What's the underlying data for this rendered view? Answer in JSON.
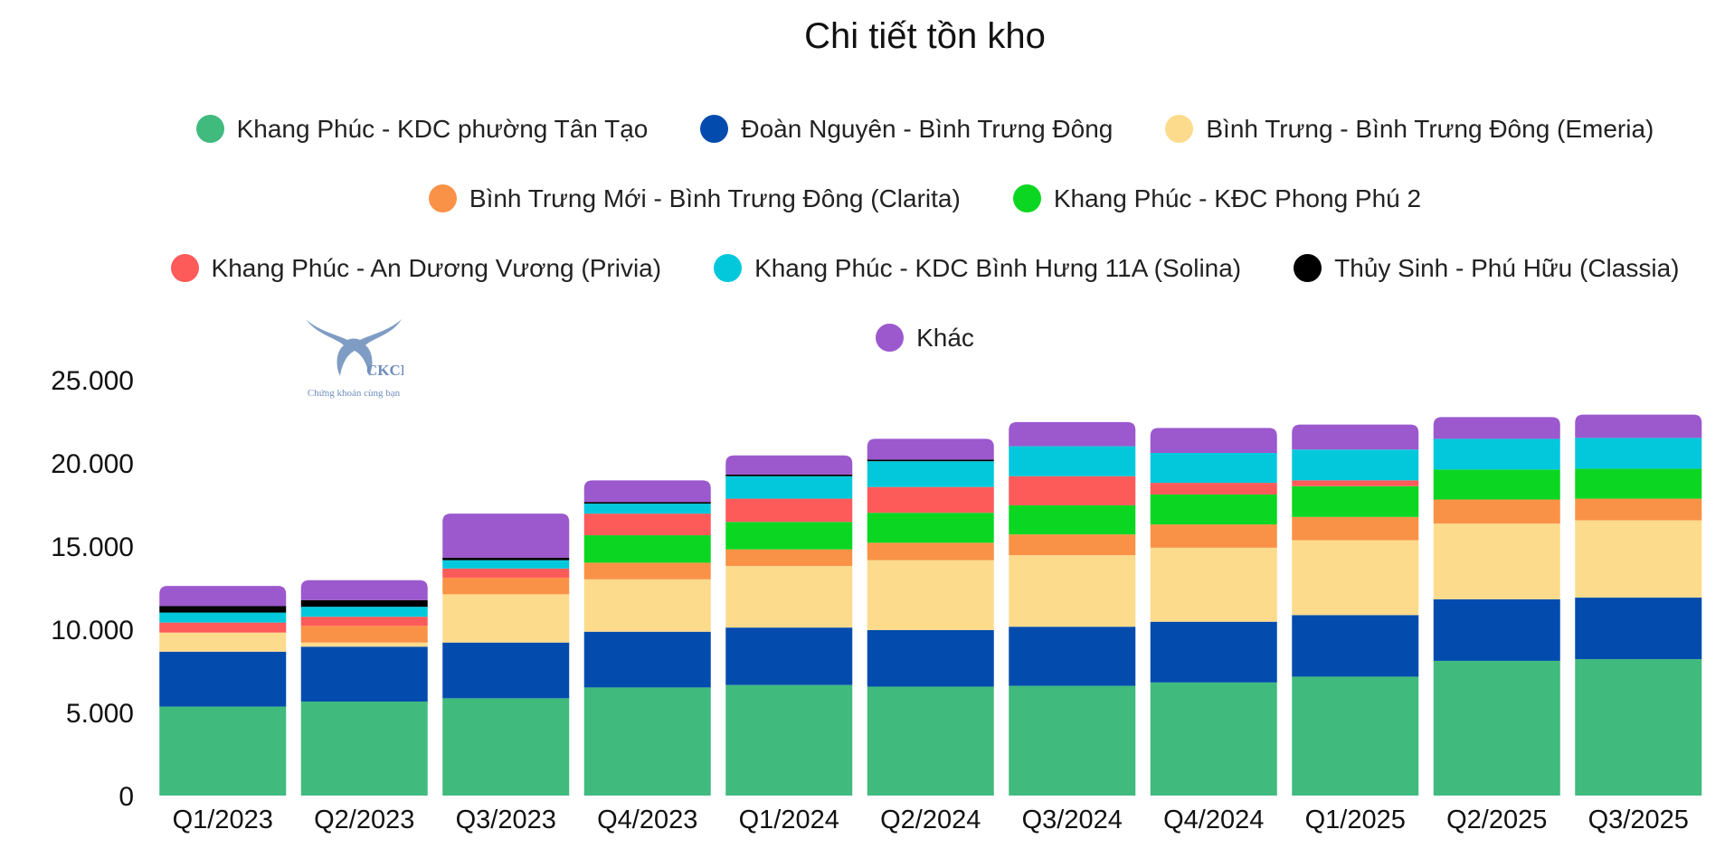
{
  "chart_data": {
    "type": "bar",
    "stacked": true,
    "title": "Chi tiết tồn kho",
    "legend_position": "top-center",
    "ylim": [
      0,
      25000
    ],
    "yticks": [
      0,
      5000,
      10000,
      15000,
      20000,
      25000
    ],
    "ytick_labels": [
      "0",
      "5.000",
      "10.000",
      "15.000",
      "20.000",
      "25.000"
    ],
    "categories": [
      "Q1/2023",
      "Q2/2023",
      "Q3/2023",
      "Q4/2023",
      "Q1/2024",
      "Q2/2024",
      "Q3/2024",
      "Q4/2024",
      "Q1/2025",
      "Q2/2025",
      "Q3/2025"
    ],
    "series": [
      {
        "name": "Khang Phúc - KDC phường Tân Tạo",
        "color": "#41BA7E",
        "values": [
          5350,
          5650,
          5850,
          6500,
          6650,
          6550,
          6600,
          6800,
          7150,
          8100,
          8200
        ]
      },
      {
        "name": "Đoàn Nguyên - Bình Trưng Đông",
        "color": "#034CAE",
        "values": [
          3300,
          3300,
          3350,
          3350,
          3450,
          3400,
          3550,
          3650,
          3700,
          3700,
          3700
        ]
      },
      {
        "name": "Bình Trưng - Bình Trưng Đông (Emeria)",
        "color": "#FDDB8D",
        "values": [
          1150,
          250,
          2900,
          3150,
          3700,
          4200,
          4300,
          4450,
          4500,
          4550,
          4650
        ]
      },
      {
        "name": "Bình Trưng Mới - Bình Trưng Đông (Clarita)",
        "color": "#F99247",
        "values": [
          0,
          1000,
          1000,
          1000,
          1000,
          1050,
          1250,
          1400,
          1400,
          1450,
          1300
        ]
      },
      {
        "name": "Khang Phúc - KĐC Phong Phú 2",
        "color": "#0BD722",
        "values": [
          0,
          0,
          0,
          1650,
          1650,
          1800,
          1750,
          1800,
          1850,
          1800,
          1800
        ]
      },
      {
        "name": "Khang Phúc - An Dương Vương (Privia)",
        "color": "#FD5A5A",
        "values": [
          600,
          550,
          550,
          1300,
          1400,
          1550,
          1750,
          700,
          350,
          0,
          0
        ]
      },
      {
        "name": "Khang Phúc - KDC Bình Hưng 11A (Solina)",
        "color": "#03C8DC",
        "values": [
          600,
          600,
          500,
          600,
          1350,
          1550,
          1800,
          1800,
          1850,
          1850,
          1850
        ]
      },
      {
        "name": "Thủy Sinh - Phú Hữu (Classia)",
        "color": "#000000",
        "values": [
          400,
          400,
          150,
          100,
          100,
          100,
          0,
          0,
          0,
          0,
          0
        ]
      },
      {
        "name": "Khác",
        "color": "#9B59CD",
        "values": [
          1200,
          1200,
          2650,
          1300,
          1150,
          1250,
          1450,
          1500,
          1500,
          1300,
          1400
        ]
      }
    ]
  },
  "watermark": {
    "text": "CKCB",
    "subtitle": "Chứng khoán cùng bạn",
    "icon": "bull-horns-logo-icon"
  }
}
